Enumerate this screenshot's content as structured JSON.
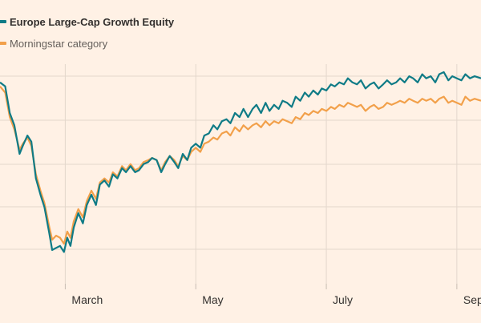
{
  "chart_data": {
    "type": "line",
    "title": "",
    "xlabel": "",
    "ylabel": "",
    "grid": true,
    "legend_placement": "top-left",
    "x_ticks": [
      "March",
      "May",
      "July",
      "September"
    ],
    "x_tick_dates": [
      1.0,
      3.0,
      5.0,
      7.0
    ],
    "x_range": [
      0.0,
      7.37
    ],
    "y_range": [
      0,
      100
    ],
    "series": [
      {
        "name": "Europe Large-Cap Growth Equity",
        "color": "#0f7b86",
        "values": [
          [
            0.0,
            95
          ],
          [
            0.08,
            93
          ],
          [
            0.15,
            80
          ],
          [
            0.22,
            74
          ],
          [
            0.3,
            60
          ],
          [
            0.35,
            64
          ],
          [
            0.42,
            69
          ],
          [
            0.48,
            66
          ],
          [
            0.55,
            48
          ],
          [
            0.62,
            40
          ],
          [
            0.68,
            34
          ],
          [
            0.75,
            22
          ],
          [
            0.8,
            13
          ],
          [
            0.86,
            14
          ],
          [
            0.92,
            15
          ],
          [
            0.98,
            12
          ],
          [
            1.03,
            19
          ],
          [
            1.08,
            15
          ],
          [
            1.13,
            24
          ],
          [
            1.2,
            31
          ],
          [
            1.27,
            26
          ],
          [
            1.33,
            35
          ],
          [
            1.4,
            40
          ],
          [
            1.47,
            35
          ],
          [
            1.53,
            45
          ],
          [
            1.6,
            47
          ],
          [
            1.67,
            44
          ],
          [
            1.73,
            50
          ],
          [
            1.8,
            48
          ],
          [
            1.87,
            53
          ],
          [
            1.93,
            51
          ],
          [
            2.0,
            54
          ],
          [
            2.07,
            51
          ],
          [
            2.13,
            52
          ],
          [
            2.2,
            55
          ],
          [
            2.27,
            56
          ],
          [
            2.33,
            58
          ],
          [
            2.4,
            57
          ],
          [
            2.47,
            51
          ],
          [
            2.53,
            55
          ],
          [
            2.6,
            59
          ],
          [
            2.67,
            56
          ],
          [
            2.73,
            53
          ],
          [
            2.8,
            60
          ],
          [
            2.87,
            57
          ],
          [
            2.93,
            63
          ],
          [
            3.0,
            65
          ],
          [
            3.07,
            63
          ],
          [
            3.13,
            69
          ],
          [
            3.2,
            70
          ],
          [
            3.27,
            74
          ],
          [
            3.33,
            72
          ],
          [
            3.4,
            76
          ],
          [
            3.47,
            77
          ],
          [
            3.53,
            75
          ],
          [
            3.6,
            80
          ],
          [
            3.67,
            78
          ],
          [
            3.73,
            82
          ],
          [
            3.8,
            78
          ],
          [
            3.87,
            82
          ],
          [
            3.93,
            84
          ],
          [
            4.0,
            80
          ],
          [
            4.07,
            85
          ],
          [
            4.13,
            81
          ],
          [
            4.2,
            84
          ],
          [
            4.27,
            82
          ],
          [
            4.33,
            86
          ],
          [
            4.4,
            85
          ],
          [
            4.47,
            83
          ],
          [
            4.53,
            88
          ],
          [
            4.6,
            86
          ],
          [
            4.67,
            90
          ],
          [
            4.73,
            88
          ],
          [
            4.8,
            91
          ],
          [
            4.87,
            89
          ],
          [
            4.93,
            92
          ],
          [
            5.0,
            91
          ],
          [
            5.07,
            94
          ],
          [
            5.13,
            93
          ],
          [
            5.2,
            95
          ],
          [
            5.27,
            94
          ],
          [
            5.33,
            97
          ],
          [
            5.4,
            95
          ],
          [
            5.47,
            94
          ],
          [
            5.53,
            96
          ],
          [
            5.6,
            92
          ],
          [
            5.67,
            94
          ],
          [
            5.73,
            95
          ],
          [
            5.8,
            92
          ],
          [
            5.87,
            94
          ],
          [
            5.93,
            96
          ],
          [
            6.0,
            94
          ],
          [
            6.07,
            95
          ],
          [
            6.13,
            97
          ],
          [
            6.2,
            95
          ],
          [
            6.27,
            98
          ],
          [
            6.33,
            97
          ],
          [
            6.4,
            95
          ],
          [
            6.47,
            99
          ],
          [
            6.53,
            97
          ],
          [
            6.6,
            98
          ],
          [
            6.67,
            95
          ],
          [
            6.73,
            99
          ],
          [
            6.8,
            100
          ],
          [
            6.87,
            96
          ],
          [
            6.93,
            98
          ],
          [
            7.0,
            97
          ],
          [
            7.07,
            96
          ],
          [
            7.13,
            99
          ],
          [
            7.2,
            97
          ],
          [
            7.27,
            98
          ],
          [
            7.37,
            97
          ]
        ]
      },
      {
        "name": "Morningstar category",
        "color": "#f2a04a",
        "values": [
          [
            0.0,
            93
          ],
          [
            0.08,
            90
          ],
          [
            0.15,
            78
          ],
          [
            0.22,
            72
          ],
          [
            0.3,
            62
          ],
          [
            0.35,
            65
          ],
          [
            0.42,
            68
          ],
          [
            0.48,
            64
          ],
          [
            0.55,
            50
          ],
          [
            0.62,
            42
          ],
          [
            0.68,
            36
          ],
          [
            0.75,
            25
          ],
          [
            0.8,
            18
          ],
          [
            0.86,
            20
          ],
          [
            0.92,
            19
          ],
          [
            0.98,
            16
          ],
          [
            1.03,
            22
          ],
          [
            1.08,
            19
          ],
          [
            1.13,
            27
          ],
          [
            1.2,
            33
          ],
          [
            1.27,
            29
          ],
          [
            1.33,
            37
          ],
          [
            1.4,
            42
          ],
          [
            1.47,
            38
          ],
          [
            1.53,
            46
          ],
          [
            1.6,
            48
          ],
          [
            1.67,
            46
          ],
          [
            1.73,
            51
          ],
          [
            1.8,
            49
          ],
          [
            1.87,
            54
          ],
          [
            1.93,
            52
          ],
          [
            2.0,
            55
          ],
          [
            2.07,
            52
          ],
          [
            2.13,
            53
          ],
          [
            2.2,
            56
          ],
          [
            2.27,
            57
          ],
          [
            2.33,
            58
          ],
          [
            2.4,
            57
          ],
          [
            2.47,
            52
          ],
          [
            2.53,
            56
          ],
          [
            2.6,
            59
          ],
          [
            2.67,
            57
          ],
          [
            2.73,
            54
          ],
          [
            2.8,
            59
          ],
          [
            2.87,
            57
          ],
          [
            2.93,
            61
          ],
          [
            3.0,
            63
          ],
          [
            3.07,
            61
          ],
          [
            3.13,
            65
          ],
          [
            3.2,
            66
          ],
          [
            3.27,
            68
          ],
          [
            3.33,
            67
          ],
          [
            3.4,
            70
          ],
          [
            3.47,
            71
          ],
          [
            3.53,
            69
          ],
          [
            3.6,
            73
          ],
          [
            3.67,
            71
          ],
          [
            3.73,
            74
          ],
          [
            3.8,
            72
          ],
          [
            3.87,
            74
          ],
          [
            3.93,
            75
          ],
          [
            4.0,
            73
          ],
          [
            4.07,
            76
          ],
          [
            4.13,
            74
          ],
          [
            4.2,
            76
          ],
          [
            4.27,
            75
          ],
          [
            4.33,
            77
          ],
          [
            4.4,
            76
          ],
          [
            4.47,
            75
          ],
          [
            4.53,
            78
          ],
          [
            4.6,
            77
          ],
          [
            4.67,
            80
          ],
          [
            4.73,
            79
          ],
          [
            4.8,
            81
          ],
          [
            4.87,
            80
          ],
          [
            4.93,
            82
          ],
          [
            5.0,
            81
          ],
          [
            5.07,
            83
          ],
          [
            5.13,
            82
          ],
          [
            5.2,
            84
          ],
          [
            5.27,
            83
          ],
          [
            5.33,
            85
          ],
          [
            5.4,
            84
          ],
          [
            5.47,
            83
          ],
          [
            5.53,
            84
          ],
          [
            5.6,
            81
          ],
          [
            5.67,
            83
          ],
          [
            5.73,
            84
          ],
          [
            5.8,
            82
          ],
          [
            5.87,
            83
          ],
          [
            5.93,
            85
          ],
          [
            6.0,
            84
          ],
          [
            6.07,
            85
          ],
          [
            6.13,
            86
          ],
          [
            6.2,
            85
          ],
          [
            6.27,
            87
          ],
          [
            6.33,
            86
          ],
          [
            6.4,
            85
          ],
          [
            6.47,
            87
          ],
          [
            6.53,
            86
          ],
          [
            6.6,
            87
          ],
          [
            6.67,
            85
          ],
          [
            6.73,
            87
          ],
          [
            6.8,
            88
          ],
          [
            6.87,
            85
          ],
          [
            6.93,
            86
          ],
          [
            7.0,
            85
          ],
          [
            7.07,
            84
          ],
          [
            7.13,
            88
          ],
          [
            7.2,
            86
          ],
          [
            7.27,
            87
          ],
          [
            7.37,
            86
          ]
        ]
      }
    ]
  }
}
